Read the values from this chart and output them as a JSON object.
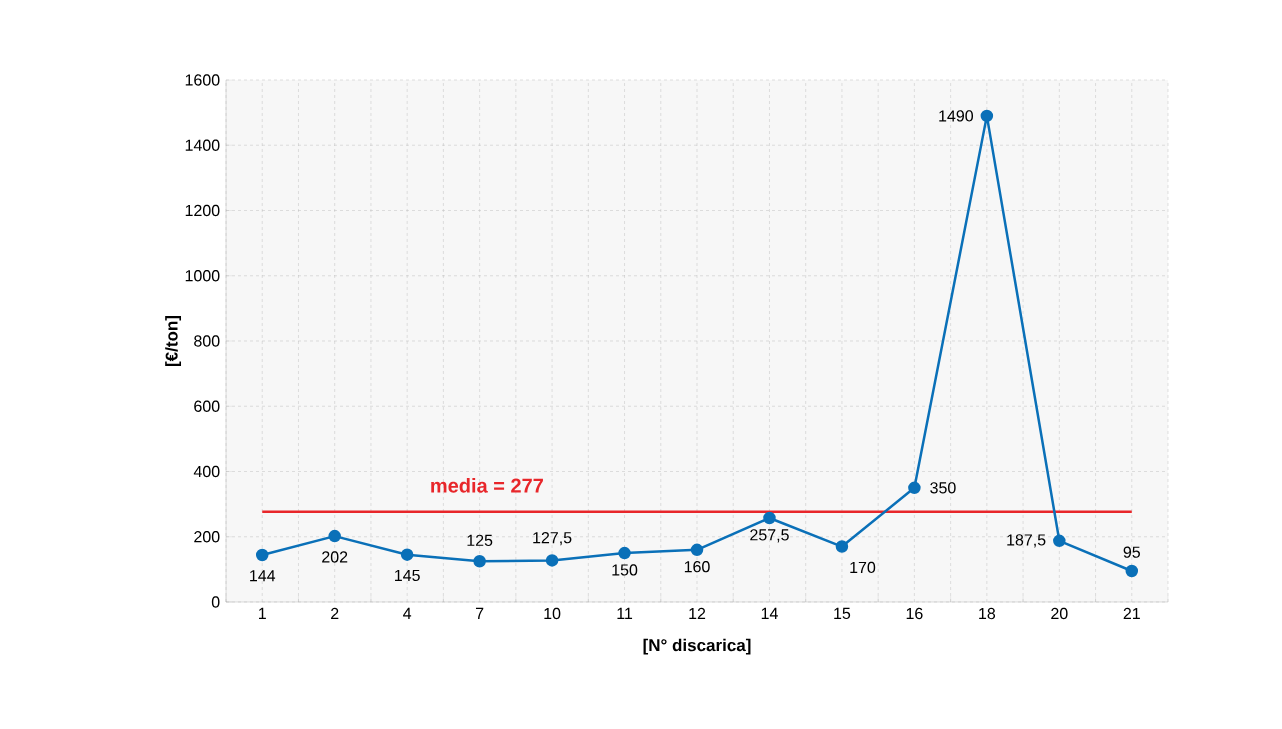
{
  "chart_data": {
    "type": "line",
    "xlabel": "[N° discarica]",
    "ylabel": "[€/ton]",
    "categories": [
      "1",
      "2",
      "4",
      "7",
      "10",
      "11",
      "12",
      "14",
      "15",
      "16",
      "18",
      "20",
      "21"
    ],
    "values": [
      144,
      202,
      145,
      125,
      127.5,
      150,
      160,
      257.5,
      170,
      350,
      1490,
      187.5,
      95
    ],
    "value_labels": [
      "144",
      "202",
      "145",
      "125",
      "127,5",
      "150",
      "160",
      "257,5",
      "170",
      "350",
      "1490",
      "187,5",
      "95"
    ],
    "color": "#0a70b8",
    "marker": "circle",
    "line_style": "solid",
    "ylim": [
      0,
      1600
    ],
    "yticks": [
      0,
      200,
      400,
      600,
      800,
      1000,
      1200,
      1400,
      1600
    ],
    "grid": true,
    "ref_lines": [
      {
        "axis": "y",
        "value": 277,
        "label": "media = 277",
        "color": "#e8262a"
      }
    ]
  }
}
